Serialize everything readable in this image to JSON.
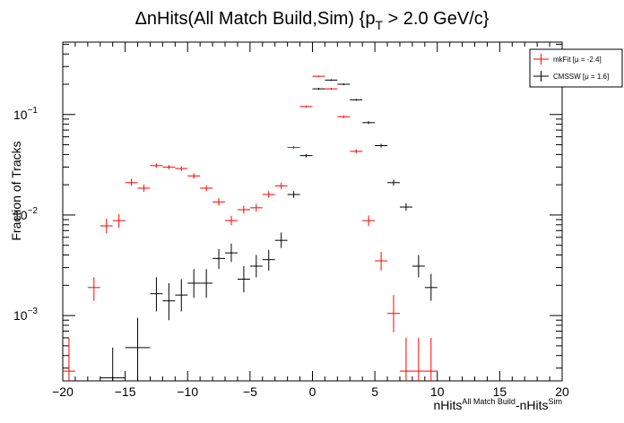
{
  "chart_data": {
    "type": "scatter",
    "title": {
      "main": "ΔnHits(All Match Build,Sim) {p",
      "sub": "T",
      "tail": " > 2.0 GeV/c}"
    },
    "xlabel": {
      "a": "nHits",
      "a_sup": "All Match Build",
      "b": "-nHits",
      "b_sup": "Sim"
    },
    "ylabel": "Fraction of Tracks",
    "xlim": [
      -20,
      20
    ],
    "ylim_log10": [
      -3.65,
      -0.28
    ],
    "log_y": true,
    "grid": false,
    "legend_position": "top-right",
    "x_ticks": [
      "−20",
      "−15",
      "−10",
      "−5",
      "0",
      "5",
      "10",
      "15",
      "20"
    ],
    "x_tick_values": [
      -20,
      -15,
      -10,
      -5,
      0,
      5,
      10,
      15,
      20
    ],
    "y_ticks": [
      {
        "base": "10",
        "exp": "−1",
        "value": 0.1
      },
      {
        "base": "10",
        "exp": "−2",
        "value": 0.01
      },
      {
        "base": "10",
        "exp": "−3",
        "value": 0.001
      }
    ],
    "series": [
      {
        "name": "mkFit  [μ = -2.4]",
        "color": "#ff0000",
        "points": [
          {
            "x": -19.5,
            "y": 0.00028,
            "lo": 0.00018,
            "hi": 0.0006
          },
          {
            "x": -17.5,
            "y": 0.0019,
            "lo": 0.0014,
            "hi": 0.0024
          },
          {
            "x": -16.5,
            "y": 0.0078,
            "lo": 0.0066,
            "hi": 0.0092
          },
          {
            "x": -15.5,
            "y": 0.0088,
            "lo": 0.0075,
            "hi": 0.0102
          },
          {
            "x": -14.5,
            "y": 0.021,
            "lo": 0.0195,
            "hi": 0.023
          },
          {
            "x": -13.5,
            "y": 0.0185,
            "lo": 0.017,
            "hi": 0.02
          },
          {
            "x": -12.5,
            "y": 0.031,
            "lo": 0.0295,
            "hi": 0.0325
          },
          {
            "x": -11.5,
            "y": 0.03,
            "lo": 0.0285,
            "hi": 0.0315
          },
          {
            "x": -10.5,
            "y": 0.029,
            "lo": 0.0275,
            "hi": 0.0305
          },
          {
            "x": -9.5,
            "y": 0.0245,
            "lo": 0.023,
            "hi": 0.026
          },
          {
            "x": -8.5,
            "y": 0.0185,
            "lo": 0.0172,
            "hi": 0.0198
          },
          {
            "x": -7.5,
            "y": 0.0135,
            "lo": 0.0124,
            "hi": 0.0147
          },
          {
            "x": -6.5,
            "y": 0.0088,
            "lo": 0.0079,
            "hi": 0.0098
          },
          {
            "x": -5.5,
            "y": 0.0113,
            "lo": 0.0103,
            "hi": 0.0124
          },
          {
            "x": -4.5,
            "y": 0.0118,
            "lo": 0.0108,
            "hi": 0.0129
          },
          {
            "x": -3.5,
            "y": 0.016,
            "lo": 0.0148,
            "hi": 0.0173
          },
          {
            "x": -2.5,
            "y": 0.0195,
            "lo": 0.0181,
            "hi": 0.021
          },
          {
            "x": -1.5,
            "y": 0.047,
            "lo": 0.0455,
            "hi": 0.0485
          },
          {
            "x": -0.5,
            "y": 0.12,
            "lo": 0.117,
            "hi": 0.123
          },
          {
            "x": 0.5,
            "y": 0.24,
            "lo": 0.236,
            "hi": 0.244
          },
          {
            "x": 1.5,
            "y": 0.18,
            "lo": 0.176,
            "hi": 0.184
          },
          {
            "x": 2.5,
            "y": 0.095,
            "lo": 0.092,
            "hi": 0.098
          },
          {
            "x": 3.5,
            "y": 0.043,
            "lo": 0.041,
            "hi": 0.045
          },
          {
            "x": 4.5,
            "y": 0.0088,
            "lo": 0.0078,
            "hi": 0.0099
          },
          {
            "x": 5.5,
            "y": 0.0035,
            "lo": 0.0028,
            "hi": 0.0043
          },
          {
            "x": 6.5,
            "y": 0.00105,
            "lo": 0.00068,
            "hi": 0.0016
          },
          {
            "x": 7.5,
            "y": 0.00028,
            "lo": 0.00018,
            "hi": 0.0006
          },
          {
            "x": 8.5,
            "y": 0.00028,
            "lo": 0.00018,
            "hi": 0.0006
          },
          {
            "x": 9.5,
            "y": 0.00028,
            "lo": 0.00018,
            "hi": 0.0006
          }
        ]
      },
      {
        "name": "CMSSW  [μ =  1.6]",
        "color": "#000000",
        "points": [
          {
            "x": -16.0,
            "y": 0.00024,
            "lo": 0.00018,
            "hi": 0.00048,
            "xerr": 1.0
          },
          {
            "x": -14.0,
            "y": 0.00048,
            "lo": 0.00022,
            "hi": 0.00095,
            "xerr": 1.0
          },
          {
            "x": -12.5,
            "y": 0.00165,
            "lo": 0.0011,
            "hi": 0.0024
          },
          {
            "x": -11.5,
            "y": 0.0014,
            "lo": 0.0009,
            "hi": 0.0021
          },
          {
            "x": -10.5,
            "y": 0.0016,
            "lo": 0.0011,
            "hi": 0.0023
          },
          {
            "x": -9.5,
            "y": 0.0021,
            "lo": 0.0015,
            "hi": 0.0029
          },
          {
            "x": -8.5,
            "y": 0.0021,
            "lo": 0.0015,
            "hi": 0.0029
          },
          {
            "x": -7.5,
            "y": 0.0037,
            "lo": 0.0029,
            "hi": 0.0046
          },
          {
            "x": -6.5,
            "y": 0.0042,
            "lo": 0.0034,
            "hi": 0.0052
          },
          {
            "x": -5.5,
            "y": 0.0023,
            "lo": 0.0017,
            "hi": 0.0031
          },
          {
            "x": -4.5,
            "y": 0.0031,
            "lo": 0.0024,
            "hi": 0.004
          },
          {
            "x": -3.5,
            "y": 0.0036,
            "lo": 0.0028,
            "hi": 0.0045
          },
          {
            "x": -2.5,
            "y": 0.0056,
            "lo": 0.0047,
            "hi": 0.0067
          },
          {
            "x": -1.5,
            "y": 0.016,
            "lo": 0.0148,
            "hi": 0.0173
          },
          {
            "x": -0.5,
            "y": 0.039,
            "lo": 0.0375,
            "hi": 0.0405
          },
          {
            "x": 0.5,
            "y": 0.18,
            "lo": 0.176,
            "hi": 0.184
          },
          {
            "x": 1.5,
            "y": 0.22,
            "lo": 0.216,
            "hi": 0.224
          },
          {
            "x": 2.5,
            "y": 0.2,
            "lo": 0.196,
            "hi": 0.204
          },
          {
            "x": 3.5,
            "y": 0.14,
            "lo": 0.137,
            "hi": 0.143
          },
          {
            "x": 4.5,
            "y": 0.083,
            "lo": 0.0805,
            "hi": 0.0855
          },
          {
            "x": 5.5,
            "y": 0.049,
            "lo": 0.047,
            "hi": 0.051
          },
          {
            "x": 6.5,
            "y": 0.021,
            "lo": 0.0196,
            "hi": 0.0225
          },
          {
            "x": 7.5,
            "y": 0.012,
            "lo": 0.011,
            "hi": 0.0131
          },
          {
            "x": 8.5,
            "y": 0.0031,
            "lo": 0.0024,
            "hi": 0.004
          },
          {
            "x": 9.5,
            "y": 0.0019,
            "lo": 0.0014,
            "hi": 0.0026
          }
        ]
      }
    ]
  }
}
